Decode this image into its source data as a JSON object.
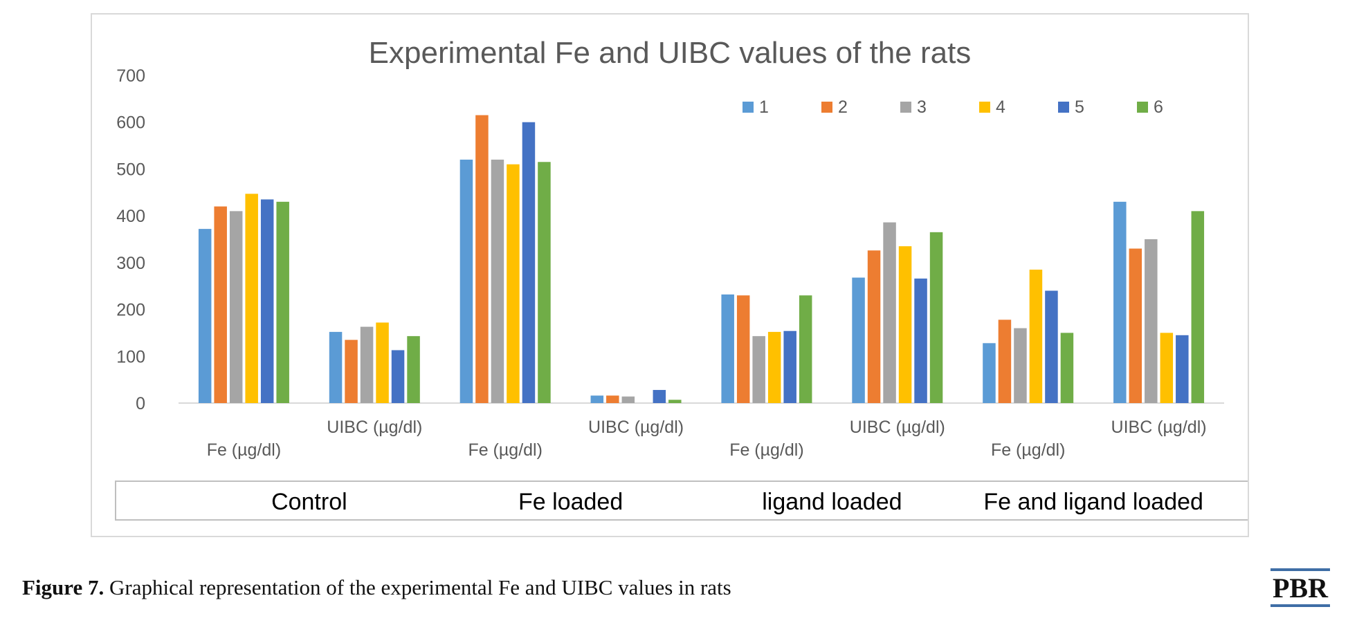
{
  "chart_data": {
    "type": "bar",
    "title": "Experimental Fe and UIBC values of the rats",
    "categories": [
      "Fe (µg/dl)",
      "UIBC (µg/dl)",
      "Fe (µg/dl)",
      "UIBC (µg/dl)",
      "Fe (µg/dl)",
      "UIBC (µg/dl)",
      "Fe (µg/dl)",
      "UIBC (µg/dl)"
    ],
    "groups": [
      "Control",
      "Fe loaded",
      "ligand loaded",
      "Fe and ligand loaded"
    ],
    "yticks": [
      "0",
      "100",
      "200",
      "300",
      "400",
      "500",
      "600",
      "700"
    ],
    "ylim": [
      0,
      700
    ],
    "legend_position": "top-right",
    "grid": false,
    "series": [
      {
        "name": "1",
        "color": "#5b9bd5",
        "values": [
          372,
          152,
          520,
          16,
          232,
          268,
          128,
          430
        ]
      },
      {
        "name": "2",
        "color": "#ed7d31",
        "values": [
          420,
          135,
          615,
          16,
          230,
          326,
          178,
          330
        ]
      },
      {
        "name": "3",
        "color": "#a5a5a5",
        "values": [
          410,
          163,
          520,
          14,
          143,
          386,
          160,
          350
        ]
      },
      {
        "name": "4",
        "color": "#ffc000",
        "values": [
          447,
          172,
          510,
          0,
          152,
          335,
          285,
          150
        ]
      },
      {
        "name": "5",
        "color": "#4472c4",
        "values": [
          435,
          113,
          600,
          28,
          154,
          266,
          240,
          145
        ]
      },
      {
        "name": "6",
        "color": "#70ad47",
        "values": [
          430,
          143,
          515,
          7,
          230,
          365,
          150,
          410
        ]
      }
    ]
  },
  "caption": {
    "label": "Figure 7.",
    "text": " Graphical representation of the experimental Fe and UIBC values in rats"
  },
  "logo": {
    "text": "PBR",
    "color": "#3f6ea6"
  }
}
